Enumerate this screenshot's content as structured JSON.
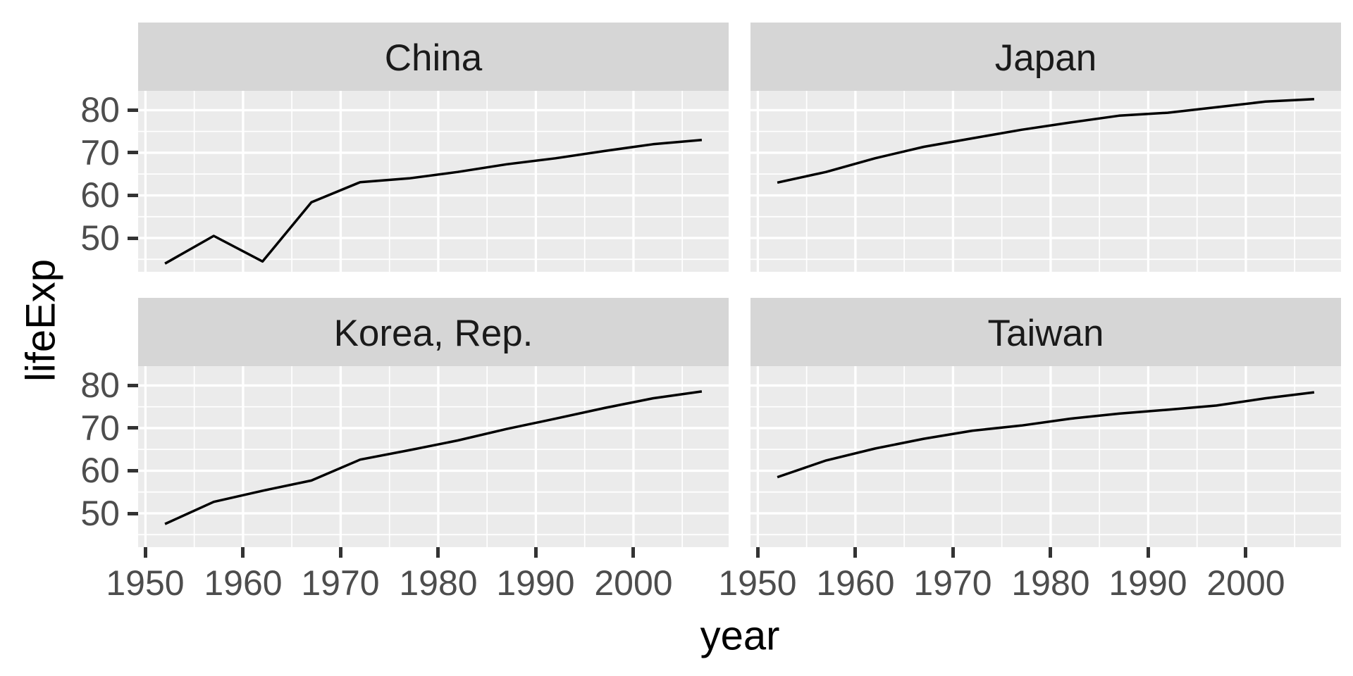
{
  "figure": {
    "kind": "ggplot2 faceted line chart",
    "background": "#FFFFFF"
  },
  "chart_data": {
    "type": "line",
    "title": "",
    "xlabel": "year",
    "ylabel": "lifeExp",
    "legend_position": "none",
    "grid": "white major and minor gridlines on grey panels",
    "facet_layout": "2x2 wrap, shared axes",
    "x": [
      1952,
      1957,
      1962,
      1967,
      1972,
      1977,
      1982,
      1987,
      1992,
      1997,
      2002,
      2007
    ],
    "facets": [
      {
        "label": "China",
        "values": [
          44.0,
          50.5,
          44.5,
          58.4,
          63.1,
          64.0,
          65.5,
          67.3,
          68.7,
          70.4,
          72.0,
          73.0
        ]
      },
      {
        "label": "Japan",
        "values": [
          63.0,
          65.5,
          68.7,
          71.4,
          73.4,
          75.4,
          77.1,
          78.7,
          79.4,
          80.7,
          82.0,
          82.6
        ]
      },
      {
        "label": "Korea, Rep.",
        "values": [
          47.5,
          52.7,
          55.3,
          57.7,
          62.6,
          64.8,
          67.1,
          69.8,
          72.2,
          74.7,
          77.0,
          78.6
        ]
      },
      {
        "label": "Taiwan",
        "values": [
          58.5,
          62.4,
          65.2,
          67.5,
          69.4,
          70.6,
          72.2,
          73.4,
          74.3,
          75.3,
          77.0,
          78.4
        ]
      }
    ],
    "xlim": [
      1949.25,
      2009.75
    ],
    "ylim": [
      42.07,
      84.53
    ],
    "x_ticks": [
      1950,
      1960,
      1970,
      1980,
      1990,
      2000
    ],
    "y_ticks": [
      80,
      70,
      60,
      50
    ],
    "x_minor_ticks": [
      1955,
      1965,
      1975,
      1985,
      1995,
      2005
    ],
    "y_minor_ticks": [
      45,
      55,
      65,
      75
    ],
    "colors": {
      "panel_bg": "#EBEBEB",
      "strip_bg": "#D6D6D6",
      "grid": "#FFFFFF",
      "line": "#000000",
      "axis_text": "#4D4D4D",
      "strip_text": "#1A1A1A",
      "axis_title": "#000000",
      "tick_mark": "#333333"
    }
  }
}
